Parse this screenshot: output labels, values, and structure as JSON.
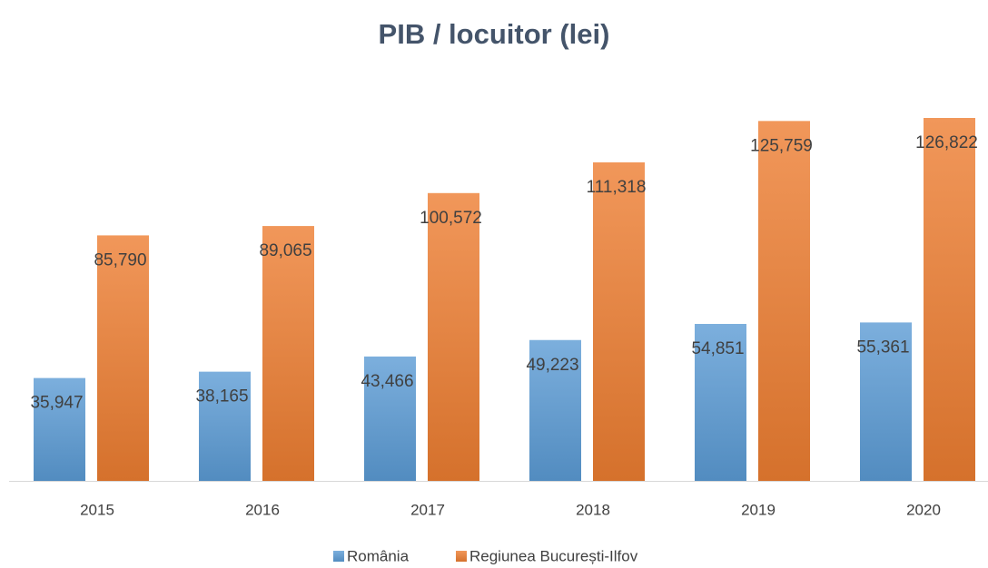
{
  "chart_data": {
    "type": "bar",
    "title": "PIB / locuitor (lei)",
    "categories": [
      "2015",
      "2016",
      "2017",
      "2018",
      "2019",
      "2020"
    ],
    "series": [
      {
        "name": "România",
        "color": "#5b9bd5",
        "values": [
          35947,
          38165,
          43466,
          49223,
          54851,
          55361
        ],
        "value_labels": [
          "35,947",
          "38,165",
          "43,466",
          "49,223",
          "54,851",
          "55,361"
        ]
      },
      {
        "name": "Regiunea București-Ilfov",
        "color": "#ed7d31",
        "values": [
          85790,
          89065,
          100572,
          111318,
          125759,
          126822
        ],
        "value_labels": [
          "85,790",
          "89,065",
          "100,572",
          "111,318",
          "125,759",
          "126,822"
        ]
      }
    ],
    "legend": "bottom"
  }
}
